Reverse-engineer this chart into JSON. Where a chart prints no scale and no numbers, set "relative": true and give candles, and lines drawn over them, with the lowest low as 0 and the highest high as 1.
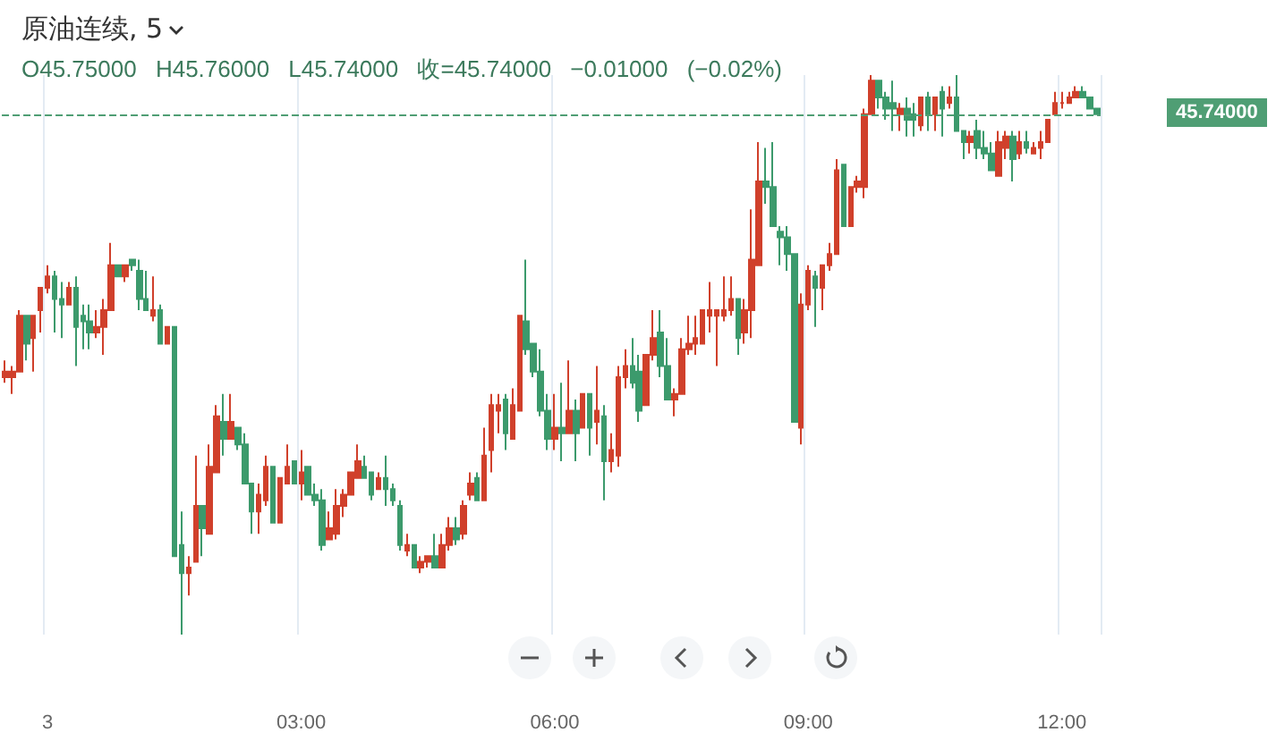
{
  "chart_data": {
    "type": "candlestick",
    "title": "原油连续, 5",
    "annotations": [
      "O45.75000 H45.76000 L45.74000 收=45.74000 −0.01000 (−0.02%)",
      "45.74000"
    ],
    "categories": [
      null,
      null,
      null,
      null,
      null,
      null,
      "3",
      null,
      null,
      null,
      null,
      null,
      null,
      null,
      null,
      null,
      null,
      null,
      null,
      null,
      null,
      null,
      null,
      null,
      null,
      null,
      null,
      null,
      null,
      null,
      null,
      null,
      null,
      null,
      null,
      null,
      null,
      null,
      null,
      null,
      null,
      null,
      "03:00",
      null,
      null,
      null,
      null,
      null,
      null,
      null,
      null,
      null,
      null,
      null,
      null,
      null,
      null,
      null,
      null,
      null,
      null,
      null,
      null,
      null,
      null,
      null,
      null,
      null,
      null,
      null,
      null,
      null,
      null,
      null,
      null,
      null,
      null,
      null,
      "06:00",
      null,
      null,
      null,
      null,
      null,
      null,
      null,
      null,
      null,
      null,
      null,
      null,
      null,
      null,
      null,
      null,
      null,
      null,
      null,
      null,
      null,
      null,
      null,
      null,
      null,
      null,
      null,
      null,
      null,
      null,
      null,
      null,
      null,
      null,
      null,
      "09:00",
      null,
      null,
      null,
      null,
      null,
      null,
      null,
      null,
      null,
      null,
      null,
      null,
      null,
      null,
      null,
      null,
      null,
      null,
      null,
      null,
      null,
      null,
      null,
      null,
      null,
      null,
      null,
      null,
      null,
      null,
      null,
      null,
      null,
      null,
      null,
      "12:00",
      null,
      null,
      null,
      null,
      null
    ],
    "ohlc": [
      [
        0.46,
        0.49,
        0.45,
        0.47
      ],
      [
        0.46,
        0.48,
        0.43,
        0.47
      ],
      [
        0.47,
        0.58,
        0.47,
        0.57
      ],
      [
        0.57,
        0.57,
        0.49,
        0.52
      ],
      [
        0.53,
        0.57,
        0.47,
        0.57
      ],
      [
        0.58,
        0.62,
        0.54,
        0.62
      ],
      [
        0.62,
        0.66,
        0.61,
        0.64
      ],
      [
        0.64,
        0.65,
        0.54,
        0.6
      ],
      [
        0.6,
        0.63,
        0.53,
        0.59
      ],
      [
        0.59,
        0.63,
        0.59,
        0.62
      ],
      [
        0.62,
        0.64,
        0.48,
        0.55
      ],
      [
        0.57,
        0.59,
        0.51,
        0.56
      ],
      [
        0.56,
        0.59,
        0.51,
        0.54
      ],
      [
        0.54,
        0.58,
        0.53,
        0.55
      ],
      [
        0.55,
        0.6,
        0.5,
        0.58
      ],
      [
        0.58,
        0.7,
        0.58,
        0.66
      ],
      [
        0.66,
        0.66,
        0.64,
        0.64
      ],
      [
        0.64,
        0.66,
        0.63,
        0.66
      ],
      [
        0.67,
        0.67,
        0.65,
        0.66
      ],
      [
        0.65,
        0.67,
        0.58,
        0.6
      ],
      [
        0.6,
        0.65,
        0.58,
        0.58
      ],
      [
        0.57,
        0.64,
        0.56,
        0.58
      ],
      [
        0.58,
        0.59,
        0.52,
        0.52
      ],
      [
        0.52,
        0.55,
        0.52,
        0.55
      ],
      [
        0.55,
        0.55,
        0.14,
        0.14
      ],
      [
        0.16,
        0.22,
        0,
        0.11
      ],
      [
        0.11,
        0.14,
        0.07,
        0.12
      ],
      [
        0.13,
        0.32,
        0.13,
        0.23
      ],
      [
        0.23,
        0.23,
        0.14,
        0.19
      ],
      [
        0.18,
        0.34,
        0.18,
        0.3
      ],
      [
        0.29,
        0.41,
        0.29,
        0.39
      ],
      [
        0.38,
        0.43,
        0.32,
        0.35
      ],
      [
        0.35,
        0.43,
        0.35,
        0.38
      ],
      [
        0.37,
        0.37,
        0.33,
        0.34
      ],
      [
        0.34,
        0.36,
        0.27,
        0.27
      ],
      [
        0.27,
        0.27,
        0.18,
        0.22
      ],
      [
        0.22,
        0.27,
        0.18,
        0.25
      ],
      [
        0.24,
        0.32,
        0.23,
        0.3
      ],
      [
        0.3,
        0.3,
        0.2,
        0.2
      ],
      [
        0.2,
        0.28,
        0.2,
        0.28
      ],
      [
        0.27,
        0.34,
        0.27,
        0.3
      ],
      [
        0.31,
        0.31,
        0.27,
        0.27
      ],
      [
        0.27,
        0.33,
        0.24,
        0.29
      ],
      [
        0.3,
        0.3,
        0.25,
        0.25
      ],
      [
        0.25,
        0.27,
        0.23,
        0.24
      ],
      [
        0.24,
        0.26,
        0.15,
        0.16
      ],
      [
        0.17,
        0.22,
        0.17,
        0.19
      ],
      [
        0.18,
        0.26,
        0.17,
        0.23
      ],
      [
        0.23,
        0.26,
        0.21,
        0.25
      ],
      [
        0.25,
        0.29,
        0.25,
        0.29
      ],
      [
        0.28,
        0.34,
        0.28,
        0.31
      ],
      [
        0.3,
        0.32,
        0.28,
        0.28
      ],
      [
        0.29,
        0.29,
        0.24,
        0.25
      ],
      [
        0.26,
        0.29,
        0.26,
        0.28
      ],
      [
        0.28,
        0.32,
        0.23,
        0.26
      ],
      [
        0.26,
        0.27,
        0.23,
        0.24
      ],
      [
        0.23,
        0.24,
        0.15,
        0.16
      ],
      [
        0.15,
        0.18,
        0.14,
        0.16
      ],
      [
        0.16,
        0.16,
        0.12,
        0.12
      ],
      [
        0.12,
        0.14,
        0.11,
        0.13
      ],
      [
        0.13,
        0.14,
        0.12,
        0.14
      ],
      [
        0.14,
        0.18,
        0.12,
        0.12
      ],
      [
        0.12,
        0.18,
        0.12,
        0.16
      ],
      [
        0.16,
        0.21,
        0.15,
        0.19
      ],
      [
        0.19,
        0.21,
        0.16,
        0.17
      ],
      [
        0.18,
        0.24,
        0.17,
        0.23
      ],
      [
        0.25,
        0.29,
        0.24,
        0.27
      ],
      [
        0.28,
        0.29,
        0.24,
        0.24
      ],
      [
        0.24,
        0.37,
        0.24,
        0.32
      ],
      [
        0.33,
        0.43,
        0.29,
        0.41
      ],
      [
        0.4,
        0.43,
        0.36,
        0.41
      ],
      [
        0.42,
        0.43,
        0.33,
        0.36
      ],
      [
        0.35,
        0.44,
        0.35,
        0.41
      ],
      [
        0.4,
        0.57,
        0.4,
        0.57
      ],
      [
        0.56,
        0.67,
        0.5,
        0.51
      ],
      [
        0.52,
        0.52,
        0.46,
        0.47
      ],
      [
        0.47,
        0.51,
        0.39,
        0.4
      ],
      [
        0.4,
        0.43,
        0.33,
        0.35
      ],
      [
        0.35,
        0.43,
        0.33,
        0.37
      ],
      [
        0.37,
        0.45,
        0.31,
        0.36
      ],
      [
        0.36,
        0.49,
        0.36,
        0.4
      ],
      [
        0.4,
        0.42,
        0.31,
        0.36
      ],
      [
        0.37,
        0.43,
        0.37,
        0.43
      ],
      [
        0.43,
        0.43,
        0.32,
        0.37
      ],
      [
        0.38,
        0.48,
        0.34,
        0.4
      ],
      [
        0.39,
        0.41,
        0.24,
        0.31
      ],
      [
        0.31,
        0.36,
        0.29,
        0.33
      ],
      [
        0.32,
        0.48,
        0.3,
        0.46
      ],
      [
        0.46,
        0.51,
        0.44,
        0.48
      ],
      [
        0.48,
        0.53,
        0.44,
        0.45
      ],
      [
        0.47,
        0.5,
        0.38,
        0.4
      ],
      [
        0.41,
        0.5,
        0.41,
        0.5
      ],
      [
        0.5,
        0.58,
        0.49,
        0.53
      ],
      [
        0.54,
        0.58,
        0.46,
        0.48
      ],
      [
        0.48,
        0.53,
        0.42,
        0.42
      ],
      [
        0.42,
        0.44,
        0.39,
        0.43
      ],
      [
        0.43,
        0.53,
        0.43,
        0.51
      ],
      [
        0.51,
        0.57,
        0.5,
        0.52
      ],
      [
        0.52,
        0.57,
        0.5,
        0.53
      ],
      [
        0.52,
        0.58,
        0.52,
        0.58
      ],
      [
        0.57,
        0.63,
        0.54,
        0.58
      ],
      [
        0.57,
        0.58,
        0.48,
        0.58
      ],
      [
        0.57,
        0.64,
        0.56,
        0.58
      ],
      [
        0.58,
        0.64,
        0.57,
        0.6
      ],
      [
        0.6,
        0.6,
        0.5,
        0.53
      ],
      [
        0.54,
        0.6,
        0.52,
        0.58
      ],
      [
        0.58,
        0.76,
        0.53,
        0.67
      ],
      [
        0.66,
        0.88,
        0.66,
        0.81
      ],
      [
        0.81,
        0.87,
        0.77,
        0.8
      ],
      [
        0.8,
        0.88,
        0.73,
        0.73
      ],
      [
        0.72,
        0.73,
        0.66,
        0.71
      ],
      [
        0.71,
        0.73,
        0.65,
        0.68
      ],
      [
        0.68,
        0.68,
        0.38,
        0.38
      ],
      [
        0.37,
        0.61,
        0.34,
        0.59
      ],
      [
        0.59,
        0.66,
        0.58,
        0.65
      ],
      [
        0.64,
        0.65,
        0.55,
        0.62
      ],
      [
        0.62,
        0.66,
        0.58,
        0.66
      ],
      [
        0.66,
        0.7,
        0.65,
        0.68
      ],
      [
        0.68,
        0.85,
        0.68,
        0.83
      ],
      [
        0.84,
        0.84,
        0.73,
        0.73
      ],
      [
        0.73,
        0.8,
        0.73,
        0.8
      ],
      [
        0.8,
        0.82,
        0.79,
        0.81
      ],
      [
        0.8,
        0.94,
        0.78,
        0.93
      ],
      [
        0.93,
        1.0,
        0.93,
        0.99
      ],
      [
        0.99,
        0.99,
        0.94,
        0.96
      ],
      [
        0.96,
        0.97,
        0.92,
        0.94
      ],
      [
        0.95,
        0.99,
        0.9,
        0.94
      ],
      [
        0.93,
        0.95,
        0.9,
        0.94
      ],
      [
        0.94,
        0.96,
        0.89,
        0.92
      ],
      [
        0.93,
        0.95,
        0.89,
        0.92
      ],
      [
        0.91,
        0.96,
        0.9,
        0.96
      ],
      [
        0.96,
        0.97,
        0.9,
        0.93
      ],
      [
        0.93,
        0.96,
        0.9,
        0.96
      ],
      [
        0.97,
        0.98,
        0.89,
        0.94
      ],
      [
        0.95,
        0.98,
        0.94,
        0.96
      ],
      [
        0.96,
        1,
        0.9,
        0.9
      ],
      [
        0.9,
        0.9,
        0.85,
        0.88
      ],
      [
        0.88,
        0.9,
        0.86,
        0.89
      ],
      [
        0.9,
        0.92,
        0.85,
        0.87
      ],
      [
        0.87,
        0.9,
        0.85,
        0.86
      ],
      [
        0.86,
        0.88,
        0.83,
        0.83
      ],
      [
        0.82,
        0.9,
        0.82,
        0.88
      ],
      [
        0.87,
        0.9,
        0.85,
        0.89
      ],
      [
        0.89,
        0.9,
        0.81,
        0.85
      ],
      [
        0.86,
        0.9,
        0.85,
        0.88
      ],
      [
        0.88,
        0.9,
        0.86,
        0.87
      ],
      [
        0.86,
        0.88,
        0.86,
        0.87
      ],
      [
        0.87,
        0.9,
        0.85,
        0.88
      ],
      [
        0.88,
        0.92,
        0.88,
        0.92
      ],
      [
        0.93,
        0.97,
        0.93,
        0.95
      ],
      [
        0.95,
        0.97,
        0.94,
        0.95
      ],
      [
        0.95,
        0.97,
        0.95,
        0.96
      ],
      [
        0.96,
        0.98,
        0.96,
        0.97
      ],
      [
        0.97,
        0.98,
        0.96,
        0.96
      ],
      [
        0.96,
        0.96,
        0.94,
        0.94
      ],
      [
        0.94,
        0.94,
        0.93,
        0.93
      ]
    ],
    "colors": [
      "#d0402b",
      "#d0402b",
      "#d0402b",
      "#3c9a6c",
      "#d0402b",
      "#d0402b",
      "#d0402b",
      "#3c9a6c",
      "#3c9a6c",
      "#d0402b",
      "#3c9a6c",
      "#3c9a6c",
      "#3c9a6c",
      "#d0402b",
      "#d0402b",
      "#d0402b",
      "#3c9a6c",
      "#d0402b",
      "#3c9a6c",
      "#3c9a6c",
      "#3c9a6c",
      "#d0402b",
      "#3c9a6c",
      "#d0402b",
      "#3c9a6c",
      "#3c9a6c",
      "#d0402b",
      "#d0402b",
      "#3c9a6c",
      "#d0402b",
      "#d0402b",
      "#3c9a6c",
      "#d0402b",
      "#3c9a6c",
      "#3c9a6c",
      "#3c9a6c",
      "#d0402b",
      "#d0402b",
      "#3c9a6c",
      "#d0402b",
      "#d0402b",
      "#3c9a6c",
      "#d0402b",
      "#3c9a6c",
      "#3c9a6c",
      "#3c9a6c",
      "#d0402b",
      "#d0402b",
      "#d0402b",
      "#d0402b",
      "#d0402b",
      "#3c9a6c",
      "#3c9a6c",
      "#d0402b",
      "#3c9a6c",
      "#3c9a6c",
      "#3c9a6c",
      "#d0402b",
      "#3c9a6c",
      "#d0402b",
      "#d0402b",
      "#3c9a6c",
      "#d0402b",
      "#d0402b",
      "#3c9a6c",
      "#d0402b",
      "#d0402b",
      "#3c9a6c",
      "#d0402b",
      "#d0402b",
      "#d0402b",
      "#3c9a6c",
      "#d0402b",
      "#d0402b",
      "#3c9a6c",
      "#3c9a6c",
      "#3c9a6c",
      "#3c9a6c",
      "#d0402b",
      "#3c9a6c",
      "#d0402b",
      "#3c9a6c",
      "#d0402b",
      "#3c9a6c",
      "#d0402b",
      "#3c9a6c",
      "#d0402b",
      "#d0402b",
      "#d0402b",
      "#3c9a6c",
      "#3c9a6c",
      "#d0402b",
      "#d0402b",
      "#3c9a6c",
      "#3c9a6c",
      "#d0402b",
      "#d0402b",
      "#d0402b",
      "#d0402b",
      "#d0402b",
      "#d0402b",
      "#d0402b",
      "#d0402b",
      "#d0402b",
      "#3c9a6c",
      "#d0402b",
      "#d0402b",
      "#d0402b",
      "#3c9a6c",
      "#3c9a6c",
      "#3c9a6c",
      "#3c9a6c",
      "#3c9a6c",
      "#d0402b",
      "#d0402b",
      "#3c9a6c",
      "#d0402b",
      "#d0402b",
      "#d0402b",
      "#3c9a6c",
      "#d0402b",
      "#d0402b",
      "#d0402b",
      "#d0402b",
      "#3c9a6c",
      "#3c9a6c",
      "#3c9a6c",
      "#d0402b",
      "#3c9a6c",
      "#3c9a6c",
      "#d0402b",
      "#3c9a6c",
      "#d0402b",
      "#3c9a6c",
      "#d0402b",
      "#3c9a6c",
      "#3c9a6c",
      "#d0402b",
      "#3c9a6c",
      "#3c9a6c",
      "#3c9a6c",
      "#d0402b",
      "#d0402b",
      "#3c9a6c",
      "#d0402b",
      "#3c9a6c",
      "#d0402b",
      "#d0402b",
      "#d0402b",
      "#d0402b",
      "#d0402b",
      "#d0402b",
      "#d0402b",
      "#3c9a6c",
      "#3c9a6c",
      "#3c9a6c"
    ],
    "relative": true,
    "grid": "x",
    "tick_labels": "x",
    "ref_lines": [
      {
        "axis": "y",
        "value": 0.93,
        "color": "#4f9e74",
        "line_style": "dashed"
      }
    ]
  }
}
